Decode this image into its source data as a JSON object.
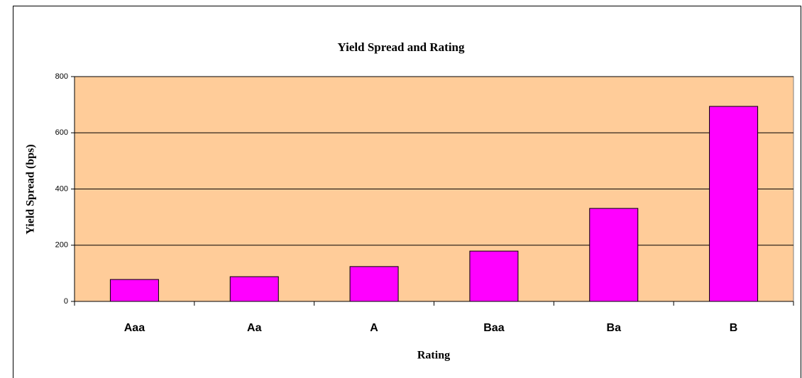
{
  "chart_data": {
    "type": "bar",
    "title": "Yield Spread and Rating",
    "xlabel": "Rating",
    "ylabel": "Yield Spread (bps)",
    "categories": [
      "Aaa",
      "Aa",
      "A",
      "Baa",
      "Ba",
      "B"
    ],
    "values": [
      78,
      88,
      124,
      179,
      331,
      694
    ],
    "color": "#ff00ff",
    "background": "#ffcc99",
    "ylim": [
      0,
      800
    ],
    "yticks": [
      0,
      200,
      400,
      600,
      800
    ],
    "grid": true
  }
}
